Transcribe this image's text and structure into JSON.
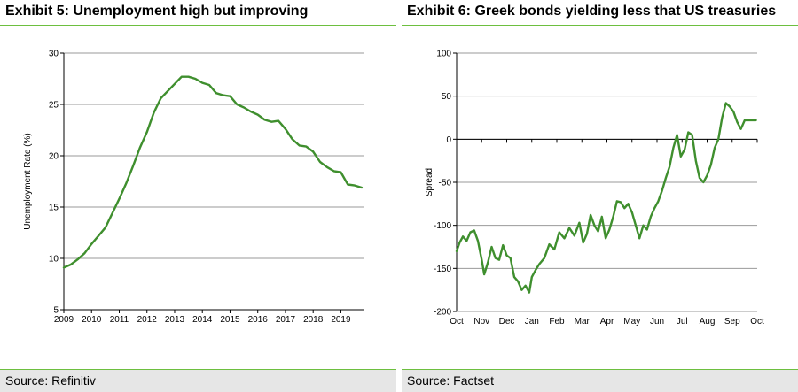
{
  "colors": {
    "line": "#3f8f2e",
    "accent_rule": "#6dbf3f",
    "grid": "#999999",
    "footer_bg": "#e6e6e6"
  },
  "left": {
    "title": "Exhibit 5: Unemployment high but improving",
    "source": "Source: Refinitiv"
  },
  "right": {
    "title": "Exhibit 6: Greek bonds yielding less that US treasuries",
    "source": "Source: Factset"
  },
  "chart_data": [
    {
      "type": "line",
      "title": "Exhibit 5: Unemployment high but improving",
      "xlabel": "",
      "ylabel": "Unemployment Rate (%)",
      "xlim": [
        2009,
        2019.85
      ],
      "ylim": [
        5,
        30
      ],
      "x_ticks": [
        "2009",
        "2010",
        "2011",
        "2012",
        "2013",
        "2014",
        "2015",
        "2016",
        "2017",
        "2018",
        "2019"
      ],
      "y_ticks": [
        "5",
        "10",
        "15",
        "20",
        "25",
        "30"
      ],
      "grid": true,
      "series": [
        {
          "name": "Unemployment Rate",
          "x": [
            2009.0,
            2009.25,
            2009.5,
            2009.75,
            2010.0,
            2010.25,
            2010.5,
            2010.75,
            2011.0,
            2011.25,
            2011.5,
            2011.75,
            2012.0,
            2012.25,
            2012.5,
            2012.75,
            2013.0,
            2013.25,
            2013.5,
            2013.75,
            2014.0,
            2014.25,
            2014.5,
            2014.75,
            2015.0,
            2015.25,
            2015.5,
            2015.75,
            2016.0,
            2016.25,
            2016.5,
            2016.75,
            2017.0,
            2017.25,
            2017.5,
            2017.75,
            2018.0,
            2018.25,
            2018.5,
            2018.75,
            2019.0,
            2019.25,
            2019.5,
            2019.75
          ],
          "values": [
            9.1,
            9.4,
            9.9,
            10.5,
            11.4,
            12.2,
            13.0,
            14.4,
            15.8,
            17.3,
            19.0,
            20.8,
            22.3,
            24.2,
            25.6,
            26.3,
            27.0,
            27.7,
            27.7,
            27.5,
            27.1,
            26.9,
            26.1,
            25.9,
            25.8,
            25.0,
            24.7,
            24.3,
            24.0,
            23.5,
            23.3,
            23.4,
            22.6,
            21.6,
            21.0,
            20.9,
            20.4,
            19.4,
            18.9,
            18.5,
            18.4,
            17.2,
            17.1,
            16.9
          ]
        }
      ]
    },
    {
      "type": "line",
      "title": "Exhibit 6: Greek bonds yielding less that US treasuries",
      "xlabel": "",
      "ylabel": "Spread",
      "xlim": [
        0,
        12
      ],
      "ylim": [
        -200,
        100
      ],
      "x_ticks": [
        "Oct",
        "Nov",
        "Dec",
        "Jan",
        "Feb",
        "Mar",
        "Apr",
        "May",
        "Jun",
        "Jul",
        "Aug",
        "Sep",
        "Oct"
      ],
      "y_ticks": [
        "-200",
        "-150",
        "-100",
        "-50",
        "0",
        "50",
        "100"
      ],
      "grid": true,
      "series": [
        {
          "name": "Spread",
          "x": [
            0,
            0.12,
            0.25,
            0.4,
            0.55,
            0.7,
            0.85,
            1.0,
            1.1,
            1.25,
            1.4,
            1.55,
            1.7,
            1.85,
            2.0,
            2.15,
            2.3,
            2.45,
            2.6,
            2.75,
            2.9,
            3.0,
            3.15,
            3.3,
            3.5,
            3.7,
            3.9,
            4.1,
            4.3,
            4.5,
            4.7,
            4.9,
            5.05,
            5.2,
            5.35,
            5.5,
            5.65,
            5.8,
            5.95,
            6.1,
            6.25,
            6.4,
            6.55,
            6.7,
            6.85,
            7.0,
            7.15,
            7.3,
            7.45,
            7.6,
            7.75,
            7.9,
            8.05,
            8.2,
            8.35,
            8.5,
            8.65,
            8.8,
            8.95,
            9.1,
            9.25,
            9.4,
            9.55,
            9.7,
            9.85,
            10.0,
            10.15,
            10.3,
            10.45,
            10.6,
            10.75,
            10.9,
            11.05,
            11.2,
            11.35,
            11.5,
            11.65,
            11.8,
            11.95
          ],
          "values": [
            -130,
            -120,
            -113,
            -118,
            -108,
            -106,
            -118,
            -140,
            -157,
            -143,
            -125,
            -138,
            -140,
            -123,
            -135,
            -138,
            -160,
            -165,
            -175,
            -170,
            -178,
            -160,
            -152,
            -145,
            -138,
            -122,
            -128,
            -108,
            -115,
            -103,
            -112,
            -97,
            -120,
            -110,
            -88,
            -100,
            -107,
            -90,
            -115,
            -105,
            -90,
            -72,
            -73,
            -80,
            -75,
            -85,
            -100,
            -115,
            -100,
            -105,
            -90,
            -80,
            -72,
            -60,
            -45,
            -32,
            -10,
            5,
            -20,
            -12,
            8,
            5,
            -25,
            -45,
            -50,
            -42,
            -30,
            -10,
            0,
            25,
            42,
            38,
            32,
            20,
            12,
            22,
            22,
            22,
            22
          ]
        }
      ]
    }
  ]
}
